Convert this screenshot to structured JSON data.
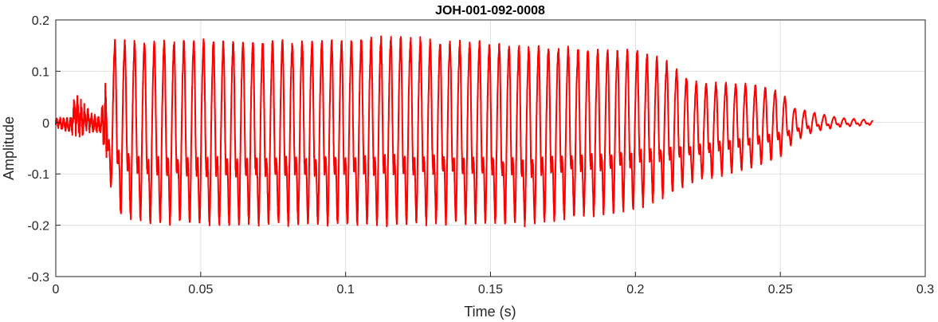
{
  "chart_data": {
    "type": "line",
    "title": "JOH-001-092-0008",
    "xlabel": "Time (s)",
    "ylabel": "Amplitude",
    "xlim": [
      0,
      0.3
    ],
    "ylim": [
      -0.3,
      0.2
    ],
    "x_ticks": [
      0,
      0.05,
      0.1,
      0.15,
      0.2,
      0.25,
      0.3
    ],
    "x_tick_labels": [
      "0",
      "0.05",
      "0.1",
      "0.15",
      "0.2",
      "0.25",
      "0.3"
    ],
    "y_ticks": [
      0.2,
      0.1,
      0,
      -0.1,
      -0.2,
      -0.3
    ],
    "y_tick_labels": [
      "0.2",
      "0.1",
      "0",
      "-0.1",
      "-0.2",
      "-0.3"
    ],
    "grid": true,
    "series": [
      {
        "color": "#ff0000",
        "envelope": {
          "t": [
            0,
            0.005,
            0.007,
            0.008,
            0.012,
            0.0155,
            0.0165,
            0.0175,
            0.019,
            0.02,
            0.03,
            0.05,
            0.1,
            0.115,
            0.15,
            0.16,
            0.2,
            0.21,
            0.22,
            0.24,
            0.25,
            0.255,
            0.262,
            0.27,
            0.282
          ],
          "max": [
            0.01,
            0.01,
            0.07,
            0.05,
            0.02,
            0.01,
            0.07,
            0.09,
            0.13,
            0.17,
            0.17,
            0.17,
            0.17,
            0.18,
            0.165,
            0.16,
            0.15,
            0.13,
            0.085,
            0.08,
            0.065,
            0.03,
            0.02,
            0.01,
            0.005
          ],
          "min": [
            -0.01,
            -0.02,
            -0.03,
            -0.03,
            -0.02,
            -0.02,
            -0.05,
            -0.12,
            -0.14,
            -0.2,
            -0.22,
            -0.225,
            -0.225,
            -0.225,
            -0.22,
            -0.225,
            -0.19,
            -0.165,
            -0.13,
            -0.1,
            -0.075,
            -0.04,
            -0.02,
            -0.01,
            -0.005
          ]
        },
        "period_s": 0.0034,
        "t_end": 0.282
      }
    ]
  }
}
